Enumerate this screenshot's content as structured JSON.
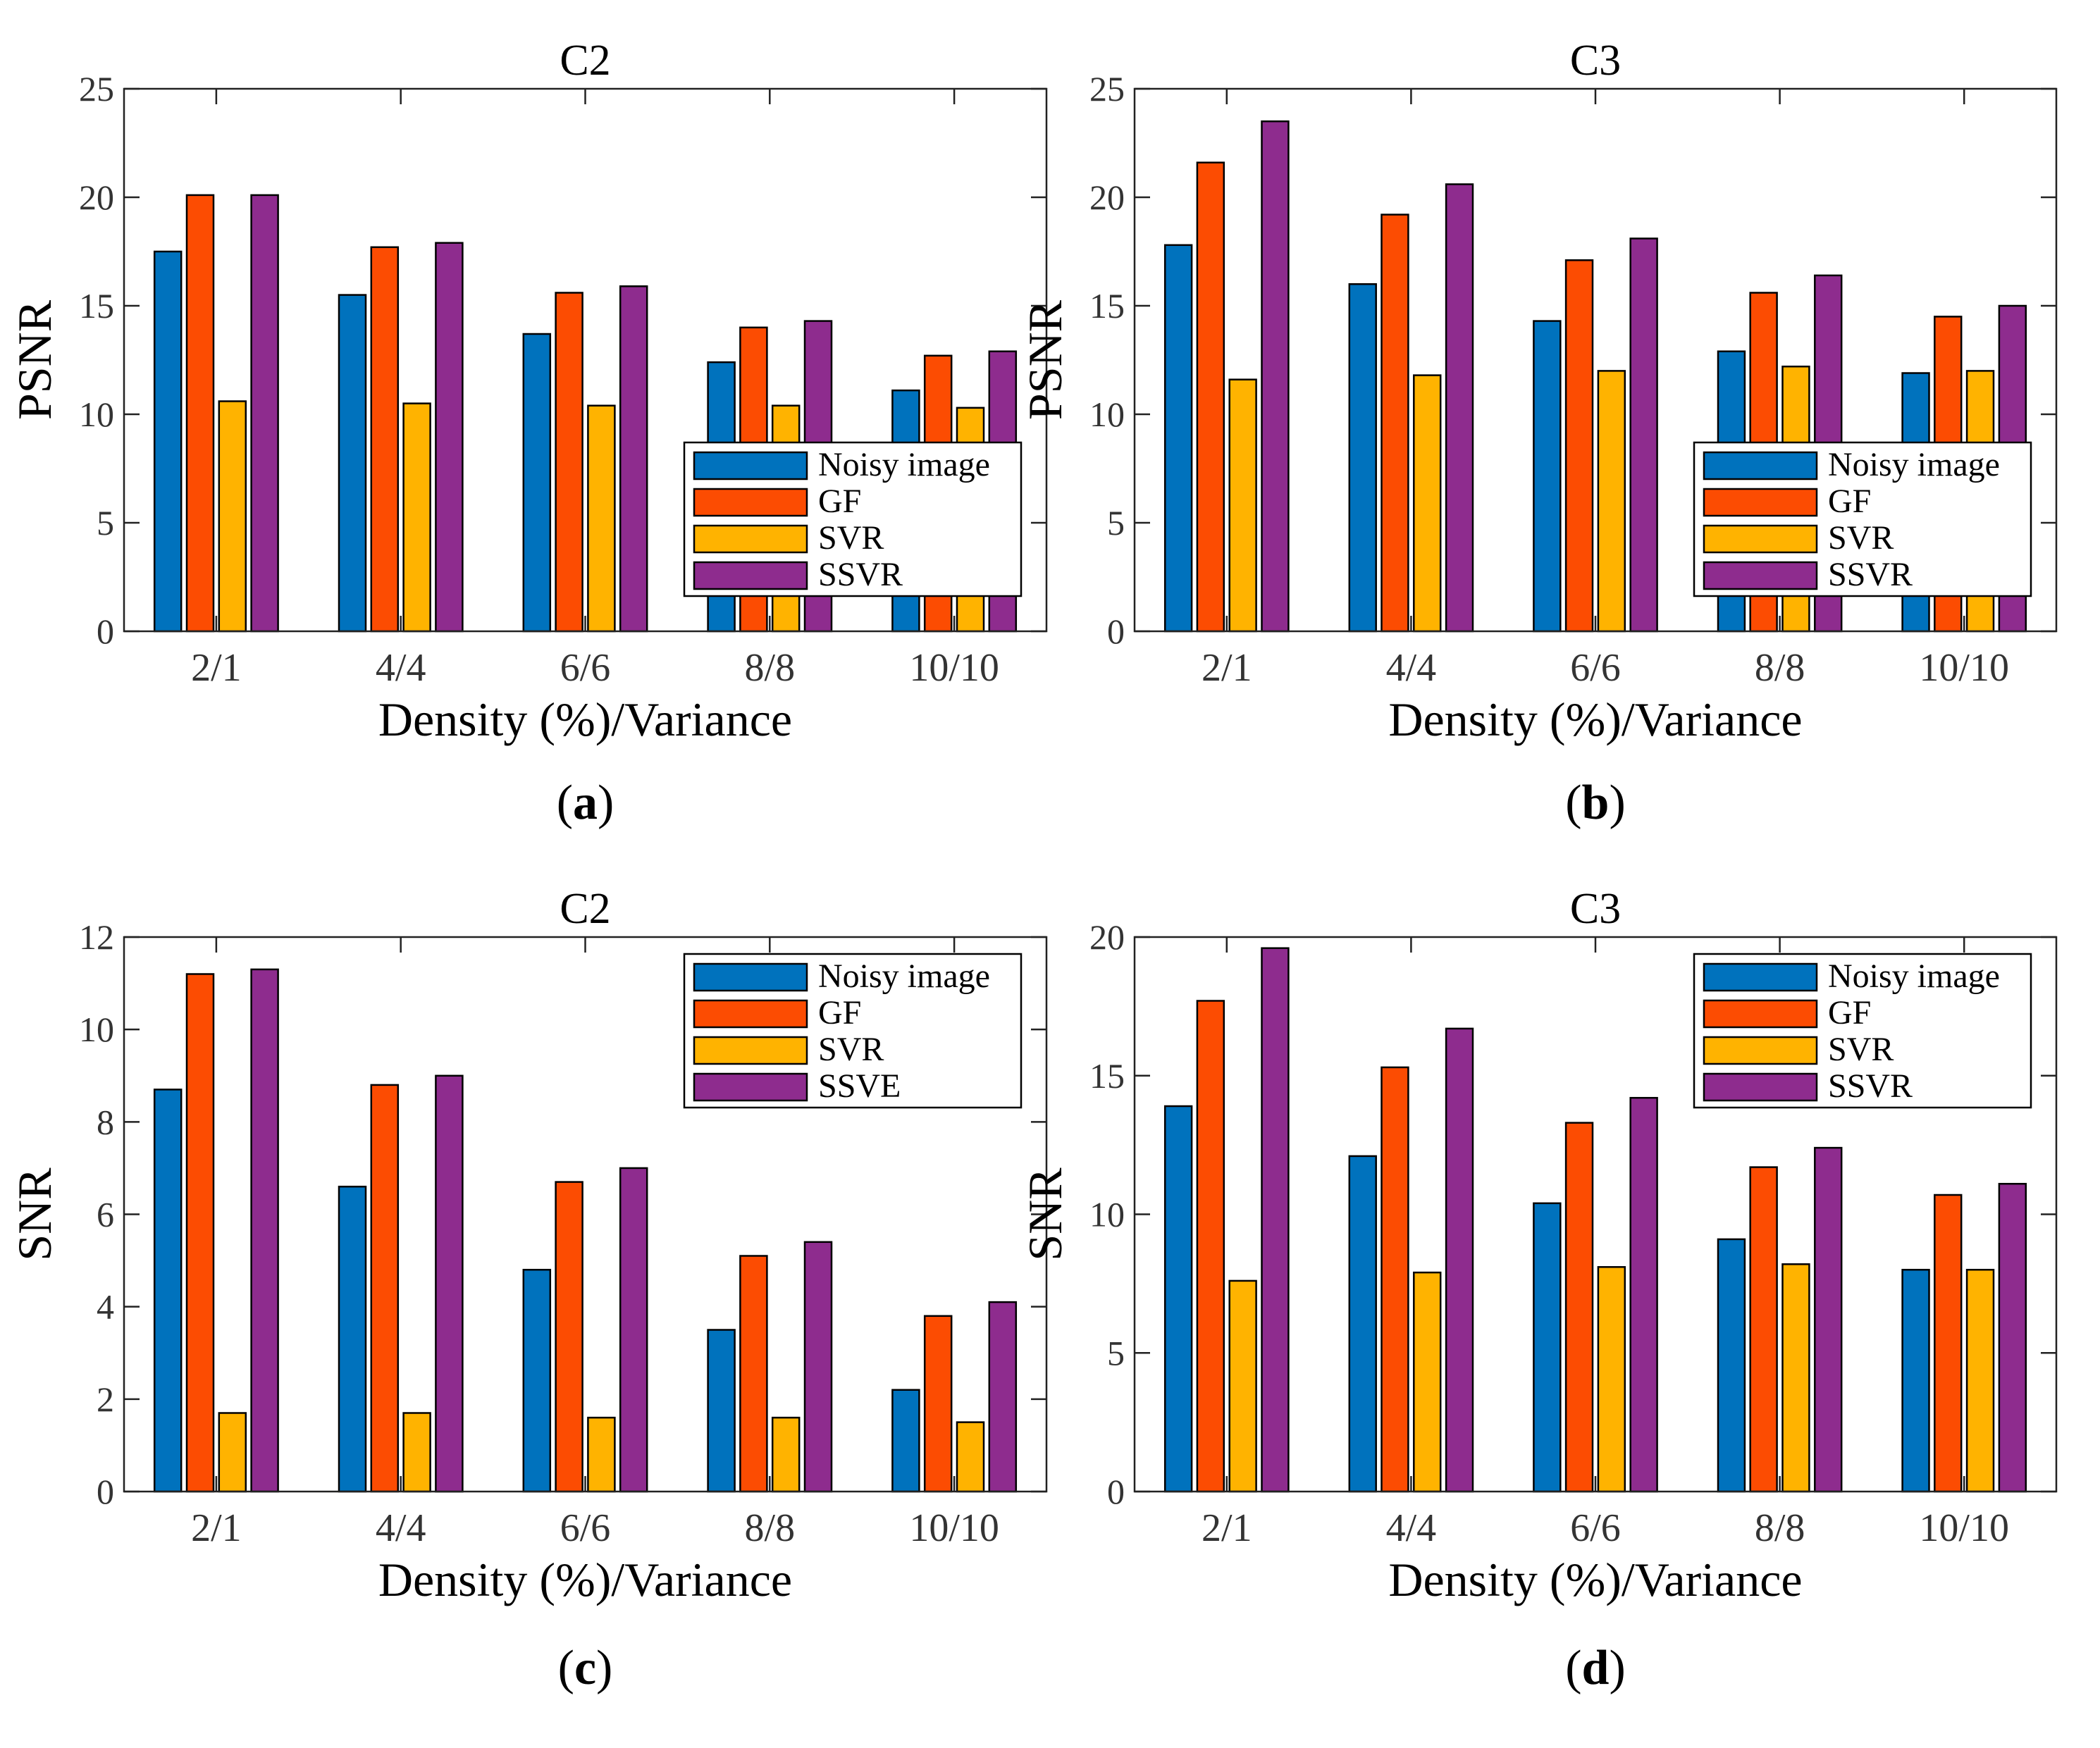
{
  "figure": {
    "palette": {
      "Noisy image": "#0072BD",
      "GF": "#FC4C02",
      "SVR": "#FFB300",
      "SSVR": "#8E2C8E",
      "SSVE": "#8E2C8E"
    }
  },
  "chart_data": [
    {
      "type": "bar",
      "title": "C2",
      "panel_letter": "a",
      "xlabel": "Density (%)/Variance",
      "ylabel": "PSNR",
      "categories": [
        "2/1",
        "4/4",
        "6/6",
        "8/8",
        "10/10"
      ],
      "ylim": [
        0,
        25
      ],
      "yticks": [
        0,
        5,
        10,
        15,
        20,
        25
      ],
      "legend_position": "lower-right",
      "series": [
        {
          "name": "Noisy image",
          "values": [
            17.5,
            15.5,
            13.7,
            12.4,
            11.1
          ]
        },
        {
          "name": "GF",
          "values": [
            20.1,
            17.7,
            15.6,
            14.0,
            12.7
          ]
        },
        {
          "name": "SVR",
          "values": [
            10.6,
            10.5,
            10.4,
            10.4,
            10.3
          ]
        },
        {
          "name": "SSVR",
          "values": [
            20.1,
            17.9,
            15.9,
            14.3,
            12.9
          ]
        }
      ]
    },
    {
      "type": "bar",
      "title": "C3",
      "panel_letter": "b",
      "xlabel": "Density (%)/Variance",
      "ylabel": "PSNR",
      "categories": [
        "2/1",
        "4/4",
        "6/6",
        "8/8",
        "10/10"
      ],
      "ylim": [
        0,
        25
      ],
      "yticks": [
        0,
        5,
        10,
        15,
        20,
        25
      ],
      "legend_position": "lower-right",
      "series": [
        {
          "name": "Noisy image",
          "values": [
            17.8,
            16.0,
            14.3,
            12.9,
            11.9
          ]
        },
        {
          "name": "GF",
          "values": [
            21.6,
            19.2,
            17.1,
            15.6,
            14.5
          ]
        },
        {
          "name": "SVR",
          "values": [
            11.6,
            11.8,
            12.0,
            12.2,
            12.0
          ]
        },
        {
          "name": "SSVR",
          "values": [
            23.5,
            20.6,
            18.1,
            16.4,
            15.0
          ]
        }
      ]
    },
    {
      "type": "bar",
      "title": "C2",
      "panel_letter": "c",
      "xlabel": "Density (%)/Variance",
      "ylabel": "SNR",
      "categories": [
        "2/1",
        "4/4",
        "6/6",
        "8/8",
        "10/10"
      ],
      "ylim": [
        0,
        12
      ],
      "yticks": [
        0,
        2,
        4,
        6,
        8,
        10,
        12
      ],
      "legend_position": "top-right",
      "series": [
        {
          "name": "Noisy image",
          "values": [
            8.7,
            6.6,
            4.8,
            3.5,
            2.2
          ]
        },
        {
          "name": "GF",
          "values": [
            11.2,
            8.8,
            6.7,
            5.1,
            3.8
          ]
        },
        {
          "name": "SVR",
          "values": [
            1.7,
            1.7,
            1.6,
            1.6,
            1.5
          ]
        },
        {
          "name": "SSVE",
          "values": [
            11.3,
            9.0,
            7.0,
            5.4,
            4.1
          ]
        }
      ]
    },
    {
      "type": "bar",
      "title": "C3",
      "panel_letter": "d",
      "xlabel": "Density (%)/Variance",
      "ylabel": "SNR",
      "categories": [
        "2/1",
        "4/4",
        "6/6",
        "8/8",
        "10/10"
      ],
      "ylim": [
        0,
        20
      ],
      "yticks": [
        0,
        5,
        10,
        15,
        20
      ],
      "legend_position": "top-right",
      "series": [
        {
          "name": "Noisy image",
          "values": [
            13.9,
            12.1,
            10.4,
            9.1,
            8.0
          ]
        },
        {
          "name": "GF",
          "values": [
            17.7,
            15.3,
            13.3,
            11.7,
            10.7
          ]
        },
        {
          "name": "SVR",
          "values": [
            7.6,
            7.9,
            8.1,
            8.2,
            8.0
          ]
        },
        {
          "name": "SSVR",
          "values": [
            19.6,
            16.7,
            14.2,
            12.4,
            11.1
          ]
        }
      ]
    }
  ]
}
